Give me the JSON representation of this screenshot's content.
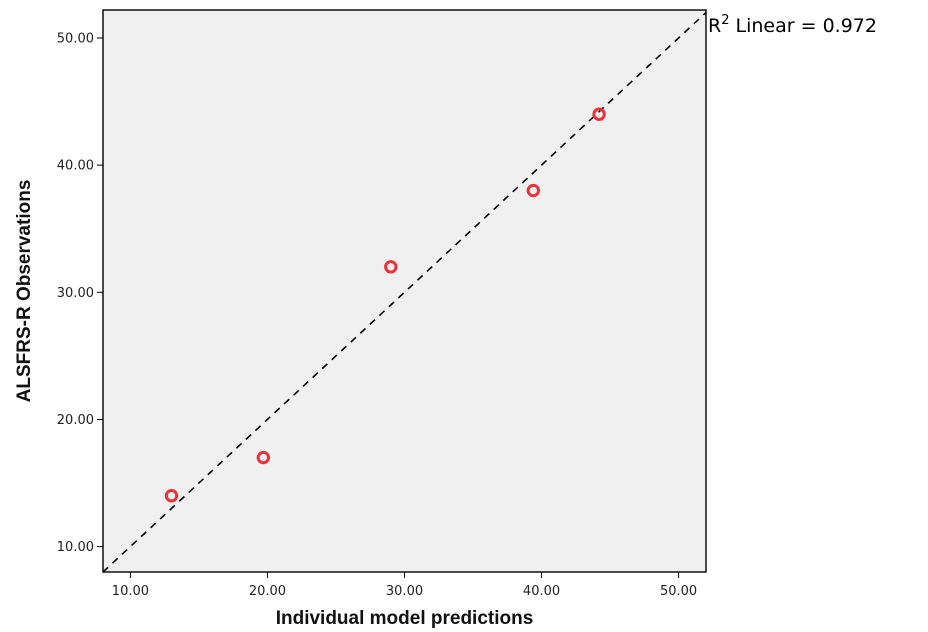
{
  "chart_data": {
    "type": "scatter",
    "xlabel": "Individual model predictions",
    "ylabel": "ALSFRS-R Observations",
    "xlim": [
      8.0,
      52.0
    ],
    "ylim": [
      8.0,
      52.2
    ],
    "x_ticks": [
      10,
      20,
      30,
      40,
      50
    ],
    "y_ticks": [
      10,
      20,
      30,
      40,
      50
    ],
    "x_tick_labels": [
      "10.00",
      "20.00",
      "30.00",
      "40.00",
      "50.00"
    ],
    "y_tick_labels": [
      "10.00",
      "20.00",
      "30.00",
      "40.00",
      "50.00"
    ],
    "grid": false,
    "series": [
      {
        "marker": "hollow-circle",
        "color": "#e8323c",
        "points": [
          {
            "x": 13.0,
            "y": 14.0
          },
          {
            "x": 19.7,
            "y": 17.0
          },
          {
            "x": 29.0,
            "y": 32.0
          },
          {
            "x": 39.4,
            "y": 38.0
          },
          {
            "x": 44.2,
            "y": 44.0
          }
        ]
      }
    ],
    "fit_line": {
      "style": "dashed",
      "color": "#000000",
      "x_range": [
        8.0,
        52.0
      ],
      "slope": 1.0,
      "intercept": 0.0,
      "label_prefix": "R",
      "label_sup": "2",
      "label_rest": " Linear = 0.972"
    },
    "plot_background": "#f0f0f0"
  }
}
